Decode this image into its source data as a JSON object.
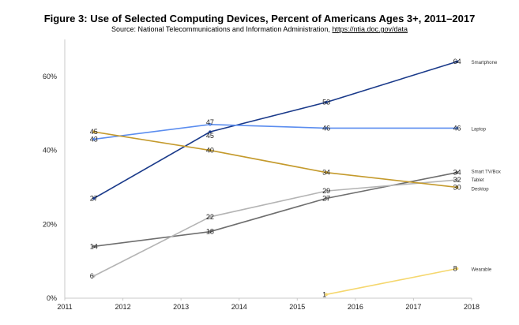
{
  "chart_data": {
    "type": "line",
    "title": "Figure 3: Use of Selected Computing Devices, Percent of Americans Ages 3+, 2011–2017",
    "subtitle": "Source: National Telecommunications and Information Administration,",
    "source_url": "https://ntia.doc.gov/data",
    "xlabel": "",
    "ylabel": "",
    "x_ticks": [
      "2011",
      "2012",
      "2013",
      "2014",
      "2015",
      "2016",
      "2017",
      "2018"
    ],
    "xlim": [
      2011,
      2018
    ],
    "ylim": [
      0,
      70
    ],
    "y_ticks": [
      {
        "value": 0,
        "label": "0%"
      },
      {
        "value": 20,
        "label": "20%"
      },
      {
        "value": 40,
        "label": "40%"
      },
      {
        "value": 60,
        "label": "60%"
      }
    ],
    "grid": false,
    "legend": "end-labels",
    "series": [
      {
        "name": "Smartphone",
        "color": "#1a3a8a",
        "x": [
          2011.5,
          2013.5,
          2015.5,
          2017.75
        ],
        "values": [
          27,
          45,
          53,
          64
        ],
        "labels": [
          "27",
          "45",
          "53",
          "64"
        ]
      },
      {
        "name": "Laptop",
        "color": "#5b8def",
        "x": [
          2011.5,
          2013.5,
          2015.5,
          2017.75
        ],
        "values": [
          43,
          47,
          46,
          46
        ],
        "labels": [
          "43",
          "47",
          "46",
          "46"
        ]
      },
      {
        "name": "Smart TV/Box",
        "color": "#6e6e6e",
        "x": [
          2011.5,
          2013.5,
          2015.5,
          2017.75
        ],
        "values": [
          14,
          18,
          27,
          34
        ],
        "labels": [
          "14",
          "18",
          "27",
          "34"
        ]
      },
      {
        "name": "Tablet",
        "color": "#b4b4b4",
        "x": [
          2011.5,
          2013.5,
          2015.5,
          2017.75
        ],
        "values": [
          6,
          22,
          29,
          32
        ],
        "labels": [
          "6",
          "22",
          "29",
          "32"
        ]
      },
      {
        "name": "Desktop",
        "color": "#c49a2c",
        "x": [
          2011.5,
          2013.5,
          2015.5,
          2017.75
        ],
        "values": [
          45,
          40,
          34,
          30
        ],
        "labels": [
          "45",
          "40",
          "34",
          "30"
        ]
      },
      {
        "name": "Wearable",
        "color": "#f5d76e",
        "x": [
          2015.5,
          2017.75
        ],
        "values": [
          1,
          8
        ],
        "labels": [
          "1",
          "8"
        ]
      }
    ]
  }
}
